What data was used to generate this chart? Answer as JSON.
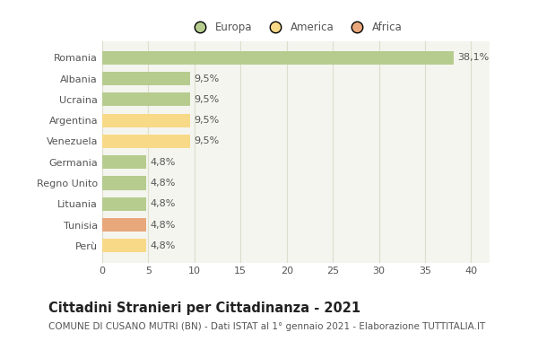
{
  "categories": [
    "Romania",
    "Albania",
    "Ucraina",
    "Argentina",
    "Venezuela",
    "Germania",
    "Regno Unito",
    "Lituania",
    "Tunisia",
    "Perù"
  ],
  "values": [
    38.1,
    9.5,
    9.5,
    9.5,
    9.5,
    4.8,
    4.8,
    4.8,
    4.8,
    4.8
  ],
  "labels": [
    "38,1%",
    "9,5%",
    "9,5%",
    "9,5%",
    "9,5%",
    "4,8%",
    "4,8%",
    "4,8%",
    "4,8%",
    "4,8%"
  ],
  "colors": [
    "#b5cc8e",
    "#b5cc8e",
    "#b5cc8e",
    "#f8d987",
    "#f8d987",
    "#b5cc8e",
    "#b5cc8e",
    "#b5cc8e",
    "#e8a87c",
    "#f8d987"
  ],
  "legend_labels": [
    "Europa",
    "America",
    "Africa"
  ],
  "legend_colors": [
    "#b5cc8e",
    "#f8d987",
    "#e8a87c"
  ],
  "title": "Cittadini Stranieri per Cittadinanza - 2021",
  "subtitle": "COMUNE DI CUSANO MUTRI (BN) - Dati ISTAT al 1° gennaio 2021 - Elaborazione TUTTITALIA.IT",
  "xlim": [
    0,
    42
  ],
  "xticks": [
    0,
    5,
    10,
    15,
    20,
    25,
    30,
    35,
    40
  ],
  "background_color": "#ffffff",
  "plot_bg_color": "#f5f5ef",
  "grid_color": "#ddddcc",
  "title_fontsize": 10.5,
  "subtitle_fontsize": 7.5,
  "label_fontsize": 8,
  "tick_fontsize": 8,
  "legend_fontsize": 8.5
}
